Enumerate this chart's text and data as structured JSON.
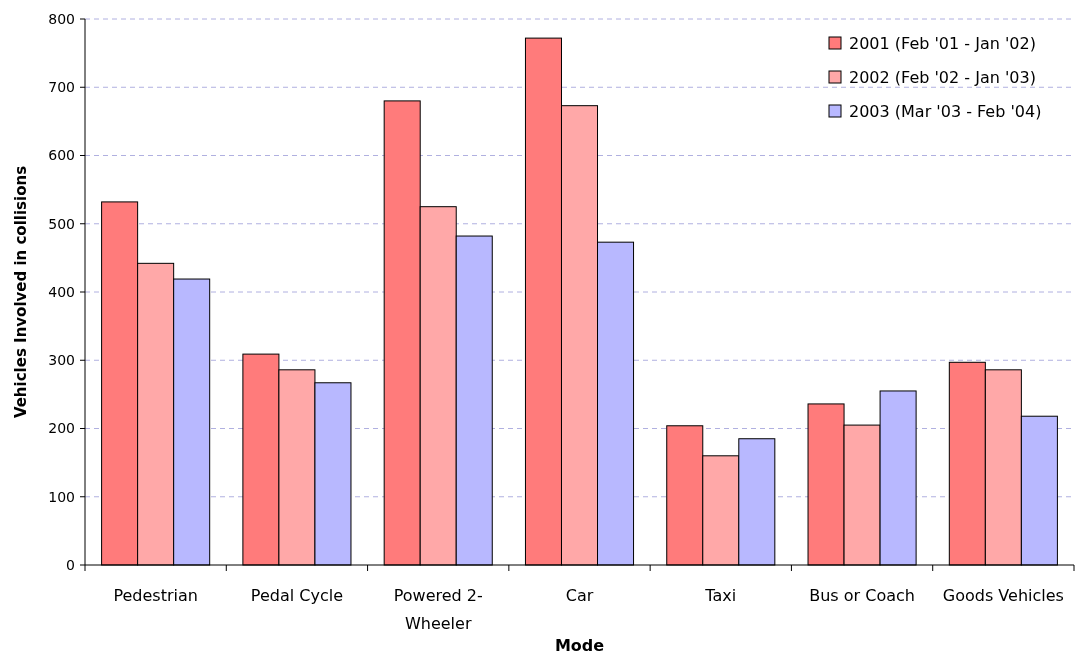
{
  "chart_data": {
    "type": "bar",
    "xlabel": "Mode",
    "ylabel": "Vehicles Involved in collisions",
    "categories": [
      "Pedestrian",
      "Pedal Cycle",
      "Powered 2-Wheeler",
      "Car",
      "Taxi",
      "Bus or Coach",
      "Goods Vehicles"
    ],
    "series": [
      {
        "name": "2001 (Feb '01 - Jan '02)",
        "color": "#ff7b7b",
        "values": [
          532,
          309,
          680,
          772,
          204,
          236,
          297
        ]
      },
      {
        "name": "2002 (Feb '02 - Jan '03)",
        "color": "#ffa8a8",
        "values": [
          442,
          286,
          525,
          673,
          160,
          205,
          286
        ]
      },
      {
        "name": "2003 (Mar '03 - Feb '04)",
        "color": "#b8b8ff",
        "values": [
          419,
          267,
          482,
          473,
          185,
          255,
          218
        ]
      }
    ],
    "ylim": [
      0,
      800
    ],
    "yticks": [
      0,
      100,
      200,
      300,
      400,
      500,
      600,
      700,
      800
    ],
    "grid": "y",
    "legend": "top right"
  }
}
